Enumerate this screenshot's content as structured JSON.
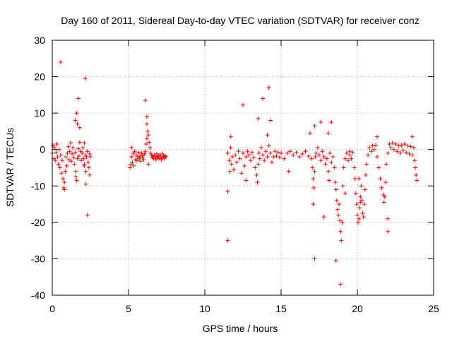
{
  "chart_data": {
    "type": "scatter",
    "title": "Day 160 of 2011, Sidereal Day-to-day VTEC variation (SDTVAR) for receiver conz",
    "xlabel": "GPS time / hours",
    "ylabel": "SDTVAR / TECUs",
    "xlim": [
      0,
      25
    ],
    "ylim": [
      -40,
      30
    ],
    "xticks": [
      0,
      5,
      10,
      15,
      20,
      25
    ],
    "yticks": [
      -40,
      -30,
      -20,
      -10,
      0,
      10,
      20,
      30
    ],
    "grid": true,
    "marker": "+",
    "color": "#ff0000",
    "series": [
      {
        "name": "SDTVAR",
        "points": [
          [
            0.0,
            -1.0
          ],
          [
            0.05,
            1.2
          ],
          [
            0.1,
            -2.5
          ],
          [
            0.15,
            0.5
          ],
          [
            0.2,
            -3.0
          ],
          [
            0.25,
            -0.8
          ],
          [
            0.3,
            1.5
          ],
          [
            0.35,
            -2.0
          ],
          [
            0.4,
            -4.0
          ],
          [
            0.45,
            0.0
          ],
          [
            0.5,
            -5.0
          ],
          [
            0.55,
            -1.5
          ],
          [
            0.6,
            -6.5
          ],
          [
            0.65,
            -3.0
          ],
          [
            0.7,
            -8.0
          ],
          [
            0.75,
            -10.5
          ],
          [
            0.8,
            -9.0
          ],
          [
            0.85,
            -6.0
          ],
          [
            0.9,
            -2.0
          ],
          [
            0.95,
            -4.5
          ],
          [
            1.0,
            -1.0
          ],
          [
            1.05,
            0.8
          ],
          [
            1.1,
            -2.8
          ],
          [
            1.15,
            -0.5
          ],
          [
            1.2,
            1.8
          ],
          [
            1.25,
            -3.2
          ],
          [
            1.3,
            -1.2
          ],
          [
            1.35,
            0.5
          ],
          [
            1.4,
            -2.2
          ],
          [
            1.45,
            -4.0
          ],
          [
            1.5,
            -0.8
          ],
          [
            1.55,
            -6.0
          ],
          [
            1.6,
            -8.5
          ],
          [
            1.65,
            -2.5
          ],
          [
            1.7,
            0.2
          ],
          [
            1.75,
            -1.8
          ],
          [
            1.8,
            2.0
          ],
          [
            1.85,
            -0.5
          ],
          [
            1.9,
            -3.0
          ],
          [
            1.95,
            -1.0
          ],
          [
            2.0,
            0.5
          ],
          [
            2.05,
            -2.5
          ],
          [
            2.1,
            -4.5
          ],
          [
            2.15,
            -1.5
          ],
          [
            2.2,
            -6.0
          ],
          [
            2.25,
            -2.0
          ],
          [
            2.3,
            -0.5
          ],
          [
            2.35,
            -3.5
          ],
          [
            2.4,
            -5.0
          ],
          [
            2.45,
            -1.2
          ],
          [
            2.5,
            -2.0
          ],
          [
            0.55,
            24.0
          ],
          [
            2.15,
            19.5
          ],
          [
            1.7,
            14.0
          ],
          [
            1.6,
            10.0
          ],
          [
            1.5,
            8.0
          ],
          [
            1.8,
            6.0
          ],
          [
            1.65,
            7.0
          ],
          [
            2.1,
            1.8
          ],
          [
            2.2,
            -9.5
          ],
          [
            2.3,
            -18.0
          ],
          [
            2.45,
            -7.0
          ],
          [
            2.1,
            -4.0
          ],
          [
            0.8,
            -11.0
          ],
          [
            1.55,
            -7.5
          ],
          [
            5.2,
            -2.0
          ],
          [
            5.25,
            -3.5
          ],
          [
            5.3,
            -1.0
          ],
          [
            5.35,
            -4.5
          ],
          [
            5.4,
            -0.5
          ],
          [
            5.45,
            -2.8
          ],
          [
            5.5,
            -1.5
          ],
          [
            5.55,
            -3.0
          ],
          [
            5.6,
            -2.0
          ],
          [
            5.65,
            -0.8
          ],
          [
            5.7,
            -2.5
          ],
          [
            5.75,
            -1.8
          ],
          [
            5.8,
            -3.2
          ],
          [
            5.85,
            -1.0
          ],
          [
            5.9,
            -2.2
          ],
          [
            5.95,
            -1.5
          ],
          [
            6.0,
            -2.8
          ],
          [
            6.05,
            -1.2
          ],
          [
            6.1,
            -0.5
          ],
          [
            6.15,
            1.5
          ],
          [
            6.2,
            3.0
          ],
          [
            6.25,
            5.0
          ],
          [
            6.3,
            4.0
          ],
          [
            6.35,
            2.0
          ],
          [
            6.4,
            0.5
          ],
          [
            6.45,
            -1.0
          ],
          [
            6.5,
            -1.5
          ],
          [
            6.55,
            -2.2
          ],
          [
            6.6,
            -1.8
          ],
          [
            6.65,
            -2.5
          ],
          [
            6.7,
            -1.5
          ],
          [
            6.75,
            -2.0
          ],
          [
            6.8,
            -2.8
          ],
          [
            6.85,
            -1.2
          ],
          [
            6.9,
            -2.2
          ],
          [
            6.95,
            -1.8
          ],
          [
            7.0,
            -2.5
          ],
          [
            7.05,
            -1.5
          ],
          [
            7.1,
            -2.0
          ],
          [
            7.15,
            -2.8
          ],
          [
            7.2,
            -1.2
          ],
          [
            7.25,
            -2.2
          ],
          [
            7.3,
            -1.6
          ],
          [
            7.35,
            -2.4
          ],
          [
            7.4,
            -1.8
          ],
          [
            7.45,
            -2.0
          ],
          [
            5.1,
            -5.0
          ],
          [
            5.15,
            -4.0
          ],
          [
            5.2,
            0.5
          ],
          [
            6.1,
            13.5
          ],
          [
            6.2,
            9.0
          ],
          [
            6.2,
            7.0
          ],
          [
            6.3,
            -4.0
          ],
          [
            11.5,
            -1.0
          ],
          [
            11.6,
            -3.0
          ],
          [
            11.65,
            -6.0
          ],
          [
            11.7,
            0.5
          ],
          [
            11.75,
            -4.0
          ],
          [
            11.8,
            -2.0
          ],
          [
            11.9,
            -5.5
          ],
          [
            12.0,
            -1.5
          ],
          [
            12.1,
            -3.5
          ],
          [
            12.2,
            -0.5
          ],
          [
            12.3,
            -2.5
          ],
          [
            12.4,
            -6.5
          ],
          [
            12.5,
            -1.0
          ],
          [
            12.6,
            -4.5
          ],
          [
            12.7,
            -2.0
          ],
          [
            12.8,
            -0.5
          ],
          [
            12.9,
            -1.5
          ],
          [
            13.0,
            -3.0
          ],
          [
            13.1,
            -0.8
          ],
          [
            13.2,
            -2.2
          ],
          [
            13.3,
            -5.0
          ],
          [
            13.4,
            -7.0
          ],
          [
            13.45,
            -9.0
          ],
          [
            13.5,
            -4.0
          ],
          [
            13.55,
            -1.0
          ],
          [
            13.6,
            -2.5
          ],
          [
            13.7,
            0.5
          ],
          [
            13.8,
            -1.5
          ],
          [
            13.9,
            -3.0
          ],
          [
            14.0,
            -0.5
          ],
          [
            14.1,
            -2.0
          ],
          [
            14.2,
            1.0
          ],
          [
            14.3,
            -1.0
          ],
          [
            14.4,
            -3.5
          ],
          [
            14.5,
            -2.0
          ],
          [
            14.6,
            -0.5
          ],
          [
            14.7,
            -1.8
          ],
          [
            14.8,
            -0.8
          ],
          [
            14.9,
            -2.2
          ],
          [
            15.0,
            -1.0
          ],
          [
            15.2,
            -2.5
          ],
          [
            15.4,
            -1.0
          ],
          [
            15.6,
            -0.5
          ],
          [
            15.8,
            -1.5
          ],
          [
            16.0,
            -0.8
          ],
          [
            16.2,
            -2.0
          ],
          [
            16.4,
            -1.2
          ],
          [
            16.6,
            -0.5
          ],
          [
            16.8,
            -1.8
          ],
          [
            17.0,
            -2.5
          ],
          [
            17.05,
            -5.0
          ],
          [
            17.1,
            -8.0
          ],
          [
            17.15,
            -10.5
          ],
          [
            17.2,
            -6.0
          ],
          [
            17.25,
            -2.0
          ],
          [
            17.3,
            -1.0
          ],
          [
            17.4,
            0.5
          ],
          [
            17.5,
            -1.5
          ],
          [
            17.6,
            -3.0
          ],
          [
            17.7,
            -0.5
          ],
          [
            17.8,
            -2.0
          ],
          [
            17.9,
            -4.0
          ],
          [
            18.0,
            -2.5
          ],
          [
            18.1,
            -6.0
          ],
          [
            18.15,
            -8.5
          ],
          [
            18.2,
            -1.0
          ],
          [
            18.3,
            -3.5
          ],
          [
            18.4,
            -2.0
          ],
          [
            18.5,
            -5.0
          ],
          [
            18.55,
            -9.0
          ],
          [
            18.6,
            -11.0
          ],
          [
            18.65,
            -14.0
          ],
          [
            18.7,
            -16.5
          ],
          [
            18.75,
            -18.0
          ],
          [
            18.8,
            -15.0
          ],
          [
            18.85,
            -19.5
          ],
          [
            18.9,
            -22.5
          ],
          [
            18.95,
            -25.0
          ],
          [
            19.0,
            -20.0
          ],
          [
            19.05,
            -10.0
          ],
          [
            19.1,
            -5.0
          ],
          [
            19.2,
            -2.5
          ],
          [
            19.3,
            -1.0
          ],
          [
            19.4,
            -3.0
          ],
          [
            19.5,
            -1.5
          ],
          [
            19.6,
            -2.5
          ],
          [
            19.7,
            -0.8
          ],
          [
            19.8,
            -5.0
          ],
          [
            19.85,
            -8.0
          ],
          [
            19.9,
            -12.0
          ],
          [
            19.95,
            -15.0
          ],
          [
            20.0,
            -18.0
          ],
          [
            20.05,
            -20.0
          ],
          [
            20.1,
            -19.0
          ],
          [
            20.15,
            -16.0
          ],
          [
            20.2,
            -13.0
          ],
          [
            20.25,
            -10.0
          ],
          [
            20.3,
            -14.0
          ],
          [
            20.35,
            -17.5
          ],
          [
            20.4,
            -18.5
          ],
          [
            20.45,
            -15.0
          ],
          [
            20.5,
            -11.0
          ],
          [
            20.55,
            -7.0
          ],
          [
            20.6,
            -4.0
          ],
          [
            20.7,
            -1.5
          ],
          [
            20.8,
            0.5
          ],
          [
            20.9,
            -0.5
          ],
          [
            21.0,
            1.0
          ],
          [
            21.1,
            0.0
          ],
          [
            21.2,
            1.2
          ],
          [
            21.3,
            -2.0
          ],
          [
            21.4,
            -5.0
          ],
          [
            21.5,
            -8.0
          ],
          [
            21.6,
            -10.5
          ],
          [
            21.7,
            -12.5
          ],
          [
            21.75,
            -14.5
          ],
          [
            21.8,
            -13.0
          ],
          [
            21.85,
            -9.0
          ],
          [
            21.9,
            -4.0
          ],
          [
            22.0,
            -1.0
          ],
          [
            22.1,
            1.5
          ],
          [
            22.2,
            0.5
          ],
          [
            22.3,
            1.8
          ],
          [
            22.4,
            0.0
          ],
          [
            22.5,
            1.5
          ],
          [
            22.6,
            -0.5
          ],
          [
            22.7,
            1.0
          ],
          [
            22.8,
            -1.0
          ],
          [
            22.9,
            1.2
          ],
          [
            23.0,
            -0.2
          ],
          [
            23.1,
            1.5
          ],
          [
            23.2,
            -0.8
          ],
          [
            23.3,
            1.0
          ],
          [
            23.4,
            -1.2
          ],
          [
            23.5,
            0.8
          ],
          [
            23.6,
            -1.5
          ],
          [
            23.7,
            0.5
          ],
          [
            23.75,
            -3.0
          ],
          [
            23.8,
            -5.0
          ],
          [
            23.85,
            -7.0
          ],
          [
            23.9,
            -8.5
          ],
          [
            11.5,
            -11.5
          ],
          [
            11.5,
            -25.0
          ],
          [
            11.7,
            3.5
          ],
          [
            12.5,
            12.2
          ],
          [
            12.7,
            -8.5
          ],
          [
            13.5,
            8.5
          ],
          [
            13.8,
            14.0
          ],
          [
            14.2,
            17.0
          ],
          [
            14.3,
            8.0
          ],
          [
            14.1,
            4.0
          ],
          [
            15.5,
            -6.0
          ],
          [
            16.9,
            4.5
          ],
          [
            17.2,
            6.5
          ],
          [
            17.6,
            7.5
          ],
          [
            17.2,
            -30.0
          ],
          [
            17.8,
            -18.5
          ],
          [
            18.6,
            -30.5
          ],
          [
            18.9,
            -37.0
          ],
          [
            17.1,
            -15.0
          ],
          [
            18.1,
            4.5
          ],
          [
            18.3,
            7.5
          ],
          [
            19.5,
            -0.5
          ],
          [
            21.3,
            3.5
          ],
          [
            22.0,
            -19.0
          ],
          [
            22.0,
            -22.5
          ],
          [
            23.6,
            3.5
          ],
          [
            20.1,
            -8.0
          ],
          [
            20.2,
            -14.5
          ],
          [
            19.2,
            -12.0
          ]
        ]
      }
    ]
  }
}
